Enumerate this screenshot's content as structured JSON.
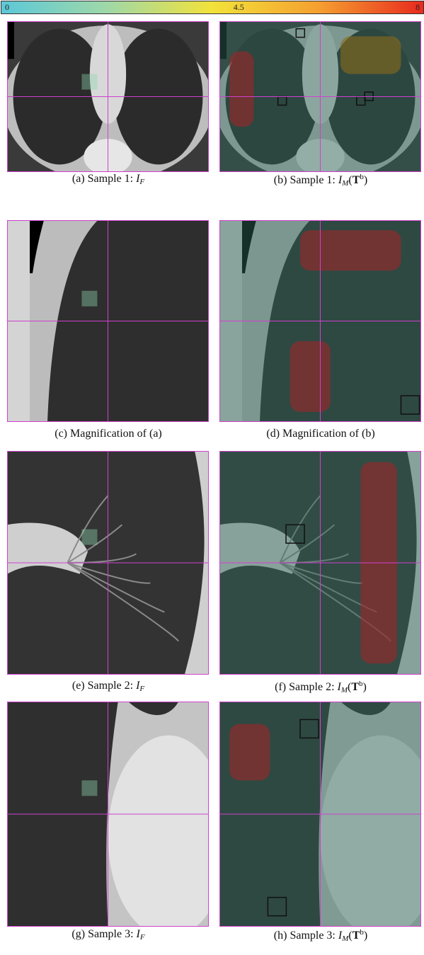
{
  "colorbar": {
    "ticks": [
      0,
      4.5,
      8
    ],
    "lim": [
      0,
      8
    ]
  },
  "captions": [
    {
      "label": "(a)",
      "text": "Sample 1:",
      "symbol": "I",
      "sub": "F"
    },
    {
      "label": "(b)",
      "text": "Sample 1:",
      "symbol": "I",
      "sub": "M",
      "open": "(",
      "arg": "T",
      "sup": "b",
      "close": ")"
    },
    {
      "label": "(c)",
      "text": "Magnification of (a)"
    },
    {
      "label": "(d)",
      "text": "Magnification of (b)"
    },
    {
      "label": "(e)",
      "text": "Sample 2:",
      "symbol": "I",
      "sub": "F"
    },
    {
      "label": "(f)",
      "text": "Sample 2:",
      "symbol": "I",
      "sub": "M",
      "open": "(",
      "arg": "T",
      "sup": "b",
      "close": ")"
    },
    {
      "label": "(g)",
      "text": "Sample 3:",
      "symbol": "I",
      "sub": "F"
    },
    {
      "label": "(h)",
      "text": "Sample 3:",
      "symbol": "I",
      "sub": "M",
      "open": "(",
      "arg": "T",
      "sup": "b",
      "close": ")"
    }
  ]
}
